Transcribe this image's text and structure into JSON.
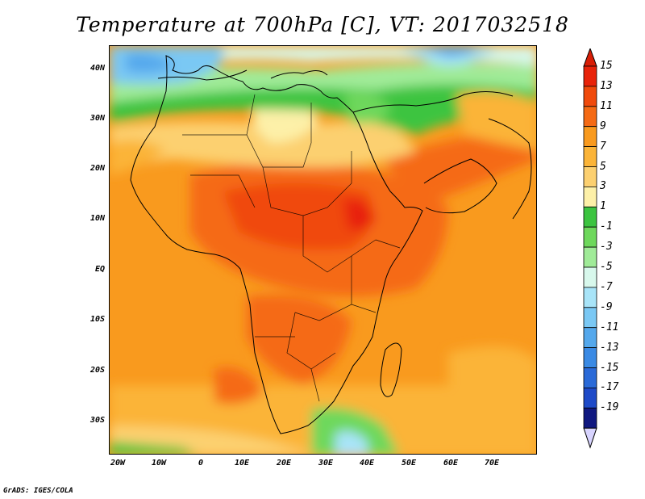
{
  "title": "Temperature at 700hPa [C], VT: 2017032518",
  "credit": "GrADS: IGES/COLA",
  "map": {
    "lon_range": [
      -23,
      80
    ],
    "lat_range": [
      -37,
      45
    ],
    "lat_ticks": [
      "40N",
      "30N",
      "20N",
      "10N",
      "EQ",
      "10S",
      "20S",
      "30S"
    ],
    "lon_ticks": [
      "20W",
      "10W",
      "0",
      "10E",
      "20E",
      "30E",
      "40E",
      "50E",
      "60E",
      "70E"
    ]
  },
  "colorbar": {
    "labels": [
      "15",
      "13",
      "11",
      "9",
      "7",
      "5",
      "3",
      "1",
      "-1",
      "-3",
      "-5",
      "-7",
      "-9",
      "-11",
      "-13",
      "-15",
      "-17",
      "-19"
    ],
    "colors": [
      "#e8230a",
      "#f04a0c",
      "#f56a14",
      "#f99a1e",
      "#fbb438",
      "#fcd070",
      "#fdf0a8",
      "#3cc440",
      "#6ed85c",
      "#a0eb98",
      "#d8f8ec",
      "#a8e4f8",
      "#7ac8f4",
      "#54a8ec",
      "#3a8ae4",
      "#2a6ad8",
      "#1e4ac8",
      "#101880"
    ],
    "top_color": "#d81e06",
    "bottom_color": "#d8d4ff"
  }
}
